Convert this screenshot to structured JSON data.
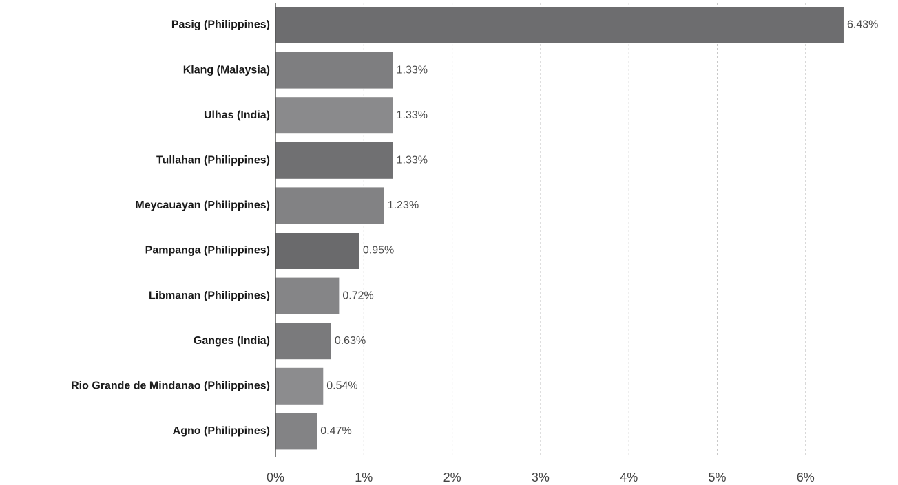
{
  "chart_data": {
    "type": "bar",
    "orientation": "horizontal",
    "categories": [
      "Pasig (Philippines)",
      "Klang (Malaysia)",
      "Ulhas (India)",
      "Tullahan (Philippines)",
      "Meycauayan (Philippines)",
      "Pampanga (Philippines)",
      "Libmanan (Philippines)",
      "Ganges (India)",
      "Rio Grande de Mindanao (Philippines)",
      "Agno (Philippines)"
    ],
    "values": [
      6.43,
      1.33,
      1.33,
      1.33,
      1.23,
      0.95,
      0.72,
      0.63,
      0.54,
      0.47
    ],
    "value_labels": [
      "6.43%",
      "1.33%",
      "1.33%",
      "1.33%",
      "1.23%",
      "0.95%",
      "0.72%",
      "0.63%",
      "0.54%",
      "0.47%"
    ],
    "bar_colors": [
      "#6d6d6f",
      "#7e7e80",
      "#8a8a8c",
      "#707072",
      "#828284",
      "#6a6a6c",
      "#858587",
      "#7a7a7c",
      "#8c8c8e",
      "#838385"
    ],
    "x_ticks": [
      0,
      1,
      2,
      3,
      4,
      5,
      6
    ],
    "x_tick_labels": [
      "0%",
      "1%",
      "2%",
      "3%",
      "4%",
      "5%",
      "6%"
    ],
    "xlim": [
      0,
      6.85
    ],
    "grid": "vertical dashed",
    "title": "",
    "xlabel": "",
    "ylabel": ""
  }
}
